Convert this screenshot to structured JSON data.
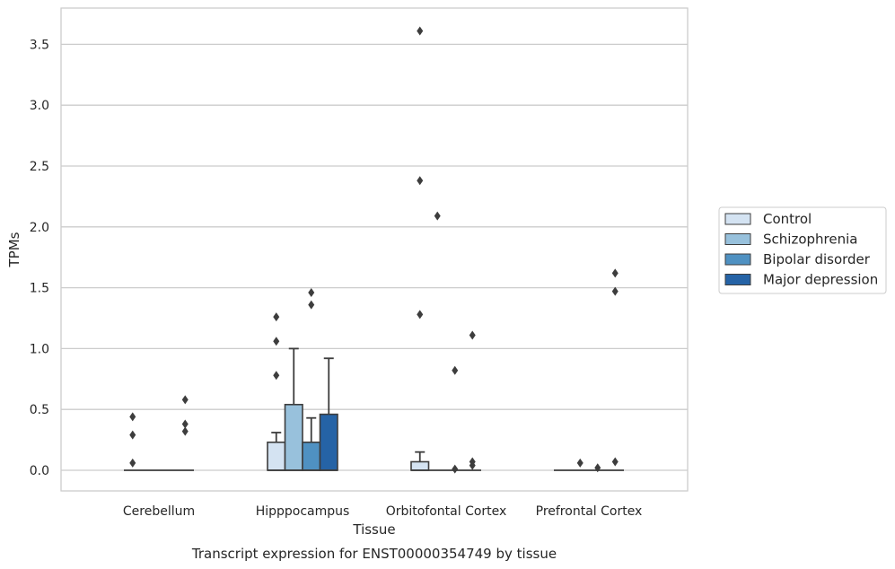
{
  "chart_data": {
    "type": "box",
    "xlabel": "Tissue",
    "ylabel": "TPMs",
    "caption": "Transcript expression for ENST00000354749 by tissue",
    "ylim": [
      -0.18,
      3.77
    ],
    "yticks": [
      "0.0",
      "0.5",
      "1.0",
      "1.5",
      "2.0",
      "2.5",
      "3.0",
      "3.5"
    ],
    "grid": true,
    "legend_position": "right",
    "categories": [
      "Cerebellum",
      "Hipppocampus",
      "Orbitofontal Cortex",
      "Prefrontal Cortex"
    ],
    "colors": [
      "#d4e3f2",
      "#98c1dc",
      "#4f91c2",
      "#2563a6"
    ],
    "series": [
      {
        "name": "Control",
        "boxes": [
          {
            "q1": 0,
            "median": 0,
            "q3": 0,
            "whislo": 0,
            "whishi": 0,
            "fliers": [
              0.06,
              0.29,
              0.44
            ]
          },
          {
            "q1": 0,
            "median": 0,
            "q3": 0.23,
            "whislo": 0,
            "whishi": 0.31,
            "fliers": [
              0.78,
              1.06,
              1.26
            ]
          },
          {
            "q1": 0,
            "median": 0,
            "q3": 0.07,
            "whislo": 0,
            "whishi": 0.15,
            "fliers": [
              1.28,
              2.38,
              3.61
            ]
          },
          {
            "q1": 0,
            "median": 0,
            "q3": 0,
            "whislo": 0,
            "whishi": 0,
            "fliers": []
          }
        ]
      },
      {
        "name": "Schizophrenia",
        "boxes": [
          {
            "q1": 0,
            "median": 0,
            "q3": 0,
            "whislo": 0,
            "whishi": 0,
            "fliers": []
          },
          {
            "q1": 0,
            "median": 0,
            "q3": 0.54,
            "whislo": 0,
            "whishi": 1.0,
            "fliers": []
          },
          {
            "q1": 0,
            "median": 0,
            "q3": 0,
            "whislo": 0,
            "whishi": 0,
            "fliers": [
              2.09
            ]
          },
          {
            "q1": 0,
            "median": 0,
            "q3": 0,
            "whislo": 0,
            "whishi": 0,
            "fliers": [
              0.06
            ]
          }
        ]
      },
      {
        "name": "Bipolar disorder",
        "boxes": [
          {
            "q1": 0,
            "median": 0,
            "q3": 0,
            "whislo": 0,
            "whishi": 0,
            "fliers": []
          },
          {
            "q1": 0,
            "median": 0,
            "q3": 0.23,
            "whislo": 0,
            "whishi": 0.43,
            "fliers": [
              1.36,
              1.46
            ]
          },
          {
            "q1": 0,
            "median": 0,
            "q3": 0,
            "whislo": 0,
            "whishi": 0,
            "fliers": [
              0.01,
              0.82
            ]
          },
          {
            "q1": 0,
            "median": 0,
            "q3": 0,
            "whislo": 0,
            "whishi": 0,
            "fliers": [
              0.02
            ]
          }
        ]
      },
      {
        "name": "Major depression",
        "boxes": [
          {
            "q1": 0,
            "median": 0,
            "q3": 0,
            "whislo": 0,
            "whishi": 0,
            "fliers": [
              0.32,
              0.38,
              0.58
            ]
          },
          {
            "q1": 0,
            "median": 0,
            "q3": 0.46,
            "whislo": 0,
            "whishi": 0.92,
            "fliers": []
          },
          {
            "q1": 0,
            "median": 0,
            "q3": 0,
            "whislo": 0,
            "whishi": 0,
            "fliers": [
              0.04,
              0.07,
              1.11
            ]
          },
          {
            "q1": 0,
            "median": 0,
            "q3": 0,
            "whislo": 0,
            "whishi": 0,
            "fliers": [
              0.07,
              1.47,
              1.62
            ]
          }
        ]
      }
    ]
  }
}
